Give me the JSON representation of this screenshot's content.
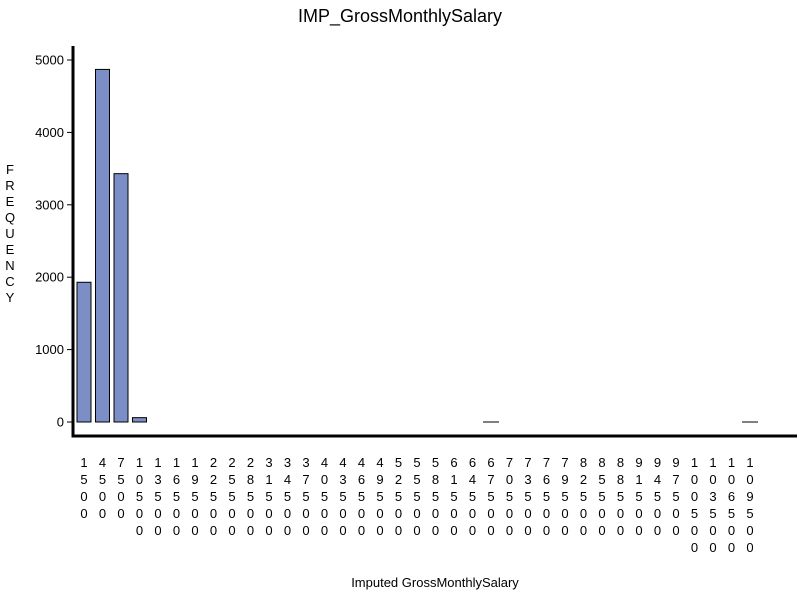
{
  "chart_data": {
    "type": "bar",
    "title": "IMP_GrossMonthlySalary",
    "xlabel": "Imputed GrossMonthlySalary",
    "ylabel": "FREQUENCY",
    "categories": [
      "1500",
      "4500",
      "7500",
      "10500",
      "13500",
      "16500",
      "19500",
      "22500",
      "25500",
      "28500",
      "31500",
      "34500",
      "37500",
      "40500",
      "43500",
      "46500",
      "49500",
      "52500",
      "55500",
      "58500",
      "61500",
      "64500",
      "67500",
      "70500",
      "73500",
      "76500",
      "79500",
      "82500",
      "85500",
      "88500",
      "91500",
      "94500",
      "97500",
      "100500",
      "103500",
      "106500",
      "109500"
    ],
    "values": [
      1930,
      4870,
      3430,
      60,
      0,
      0,
      0,
      0,
      0,
      0,
      0,
      0,
      0,
      0,
      0,
      0,
      0,
      0,
      0,
      0,
      0,
      0,
      3,
      0,
      0,
      0,
      0,
      0,
      0,
      0,
      0,
      0,
      0,
      0,
      0,
      0,
      3
    ],
    "yticks": [
      0,
      1000,
      2000,
      3000,
      4000,
      5000
    ],
    "ylim": [
      0,
      5200
    ],
    "bar_color": "#7b8fc6",
    "grid": false
  }
}
